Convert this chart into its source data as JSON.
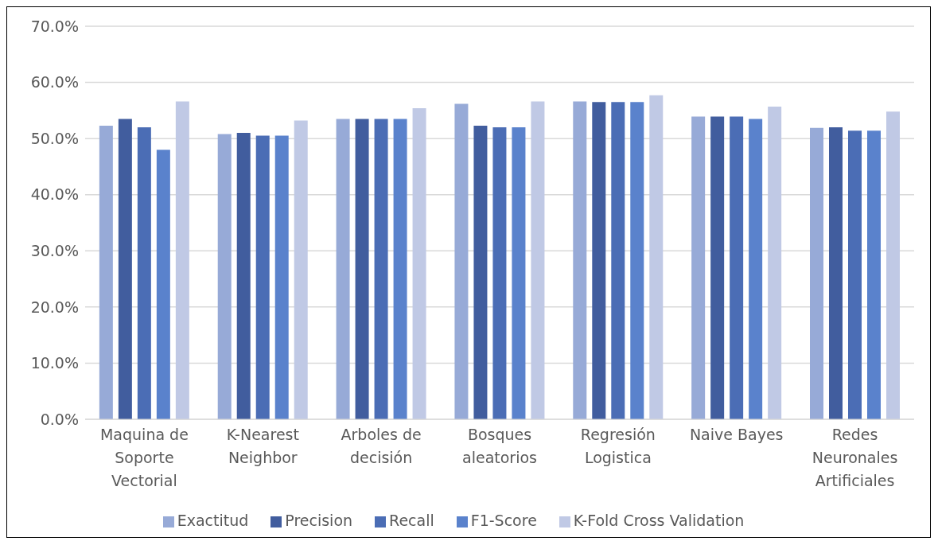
{
  "chart_data": {
    "type": "bar",
    "categories": [
      "Maquina de Soporte Vectorial",
      "K-Nearest Neighbor",
      "Arboles de decisión",
      "Bosques aleatorios",
      "Regresión Logistica",
      "Naive Bayes",
      "Redes Neuronales Artificiales"
    ],
    "series": [
      {
        "name": "Exactitud",
        "color": "#97aad7",
        "values": [
          52.3,
          50.8,
          53.5,
          56.2,
          56.6,
          53.9,
          51.9
        ]
      },
      {
        "name": "Precision",
        "color": "#415d9e",
        "values": [
          53.5,
          51.0,
          53.5,
          52.3,
          56.5,
          53.9,
          52.0
        ]
      },
      {
        "name": "Recall",
        "color": "#4b6db5",
        "values": [
          52.0,
          50.5,
          53.5,
          52.0,
          56.5,
          53.9,
          51.4
        ]
      },
      {
        "name": "F1-Score",
        "color": "#5a82cc",
        "values": [
          48.0,
          50.5,
          53.5,
          52.0,
          56.5,
          53.5,
          51.4
        ]
      },
      {
        "name": "K-Fold Cross Validation",
        "color": "#c0c9e5",
        "values": [
          56.6,
          53.2,
          55.4,
          56.6,
          57.7,
          55.7,
          54.8
        ]
      }
    ],
    "ylim": [
      0,
      70
    ],
    "yticks": [
      {
        "value": 0,
        "label": "0.0%"
      },
      {
        "value": 10,
        "label": "10.0%"
      },
      {
        "value": 20,
        "label": "20.0%"
      },
      {
        "value": 30,
        "label": "30.0%"
      },
      {
        "value": 40,
        "label": "40.0%"
      },
      {
        "value": 50,
        "label": "50.0%"
      },
      {
        "value": 60,
        "label": "60.0%"
      },
      {
        "value": 70,
        "label": "70.0%"
      }
    ],
    "grid": "y",
    "legend": "bottom"
  }
}
